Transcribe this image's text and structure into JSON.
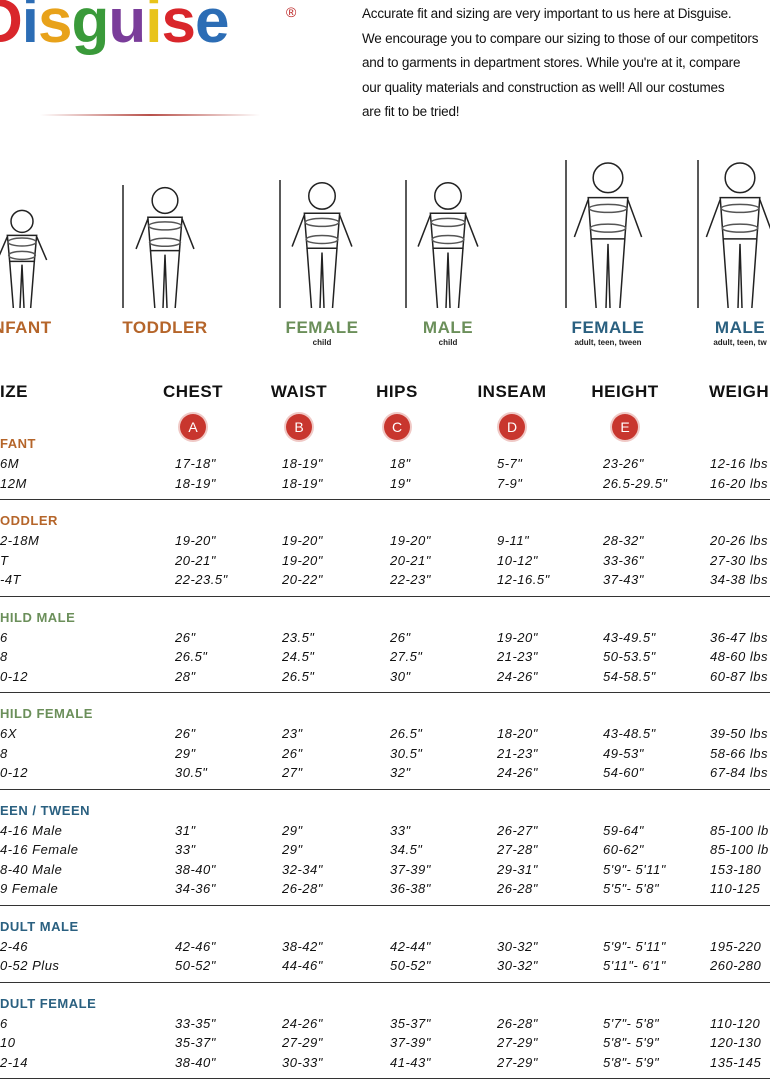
{
  "header": {
    "logo": "Disguise",
    "registered": "®",
    "intro": [
      "Accurate fit and sizing are very important to us here at Disguise.",
      "We encourage you to compare our sizing to those of our competitors",
      "and to garments in department stores. While you're at it, compare",
      "our quality materials and construction as well! All our costumes",
      "are fit to be tried!"
    ]
  },
  "figures": [
    {
      "label": "NFANT"
    },
    {
      "label": "TODDLER"
    },
    {
      "label": "FEMALE",
      "sub": "child"
    },
    {
      "label": "MALE",
      "sub": "child"
    },
    {
      "label": "FEMALE",
      "sub": "adult, teen, tween"
    },
    {
      "label": "MALE",
      "sub": "adult, teen, tw"
    }
  ],
  "table": {
    "headers": [
      "IZE",
      "CHEST",
      "WAIST",
      "HIPS",
      "INSEAM",
      "HEIGHT",
      "WEIGH"
    ],
    "badges": [
      "A",
      "B",
      "C",
      "D",
      "E"
    ],
    "sections": [
      {
        "title": "FANT",
        "rows": [
          [
            "6M",
            "17-18\"",
            "18-19\"",
            "18\"",
            "5-7\"",
            "23-26\"",
            "12-16 lbs"
          ],
          [
            "12M",
            "18-19\"",
            "18-19\"",
            "19\"",
            "7-9\"",
            "26.5-29.5\"",
            "16-20 lbs"
          ]
        ]
      },
      {
        "title": "ODDLER",
        "rows": [
          [
            "2-18M",
            "19-20\"",
            "19-20\"",
            "19-20\"",
            "9-11\"",
            "28-32\"",
            "20-26 lbs"
          ],
          [
            "T",
            "20-21\"",
            "19-20\"",
            "20-21\"",
            "10-12\"",
            "33-36\"",
            "27-30 lbs"
          ],
          [
            "-4T",
            "22-23.5\"",
            "20-22\"",
            "22-23\"",
            "12-16.5\"",
            "37-43\"",
            "34-38 lbs"
          ]
        ]
      },
      {
        "title": "HILD MALE",
        "rows": [
          [
            "6",
            "26\"",
            "23.5\"",
            "26\"",
            "19-20\"",
            "43-49.5\"",
            "36-47 lbs"
          ],
          [
            "8",
            "26.5\"",
            "24.5\"",
            "27.5\"",
            "21-23\"",
            "50-53.5\"",
            "48-60 lbs"
          ],
          [
            "0-12",
            "28\"",
            "26.5\"",
            "30\"",
            "24-26\"",
            "54-58.5\"",
            "60-87 lbs"
          ]
        ]
      },
      {
        "title": "HILD FEMALE",
        "rows": [
          [
            "6X",
            "26\"",
            "23\"",
            "26.5\"",
            "18-20\"",
            "43-48.5\"",
            "39-50 lbs"
          ],
          [
            "8",
            "29\"",
            "26\"",
            "30.5\"",
            "21-23\"",
            "49-53\"",
            "58-66 lbs"
          ],
          [
            "0-12",
            "30.5\"",
            "27\"",
            "32\"",
            "24-26\"",
            "54-60\"",
            "67-84 lbs"
          ]
        ]
      },
      {
        "title": "EEN / TWEEN",
        "rows": [
          [
            "4-16 Male",
            "31\"",
            "29\"",
            "33\"",
            "26-27\"",
            "59-64\"",
            "85-100 lb"
          ],
          [
            "4-16 Female",
            "33\"",
            "29\"",
            "34.5\"",
            "27-28\"",
            "60-62\"",
            "85-100 lb"
          ],
          [
            "8-40 Male",
            "38-40\"",
            "32-34\"",
            "37-39\"",
            "29-31\"",
            "5'9\"- 5'11\"",
            "153-180"
          ],
          [
            "9 Female",
            "34-36\"",
            "26-28\"",
            "36-38\"",
            "26-28\"",
            "5'5\"- 5'8\"",
            "110-125"
          ]
        ]
      },
      {
        "title": "DULT MALE",
        "rows": [
          [
            "2-46",
            "42-46\"",
            "38-42\"",
            "42-44\"",
            "30-32\"",
            "5'9\"- 5'11\"",
            "195-220"
          ],
          [
            "0-52 Plus",
            "50-52\"",
            "44-46\"",
            "50-52\"",
            "30-32\"",
            "5'11\"- 6'1\"",
            "260-280"
          ]
        ]
      },
      {
        "title": "DULT FEMALE",
        "rows": [
          [
            "6",
            "33-35\"",
            "24-26\"",
            "35-37\"",
            "26-28\"",
            "5'7\"- 5'8\"",
            "110-120"
          ],
          [
            "10",
            "35-37\"",
            "27-29\"",
            "37-39\"",
            "27-29\"",
            "5'8\"- 5'9\"",
            "120-130"
          ],
          [
            "2-14",
            "38-40\"",
            "30-33\"",
            "41-43\"",
            "27-29\"",
            "5'8\"- 5'9\"",
            "135-145"
          ]
        ]
      }
    ]
  }
}
